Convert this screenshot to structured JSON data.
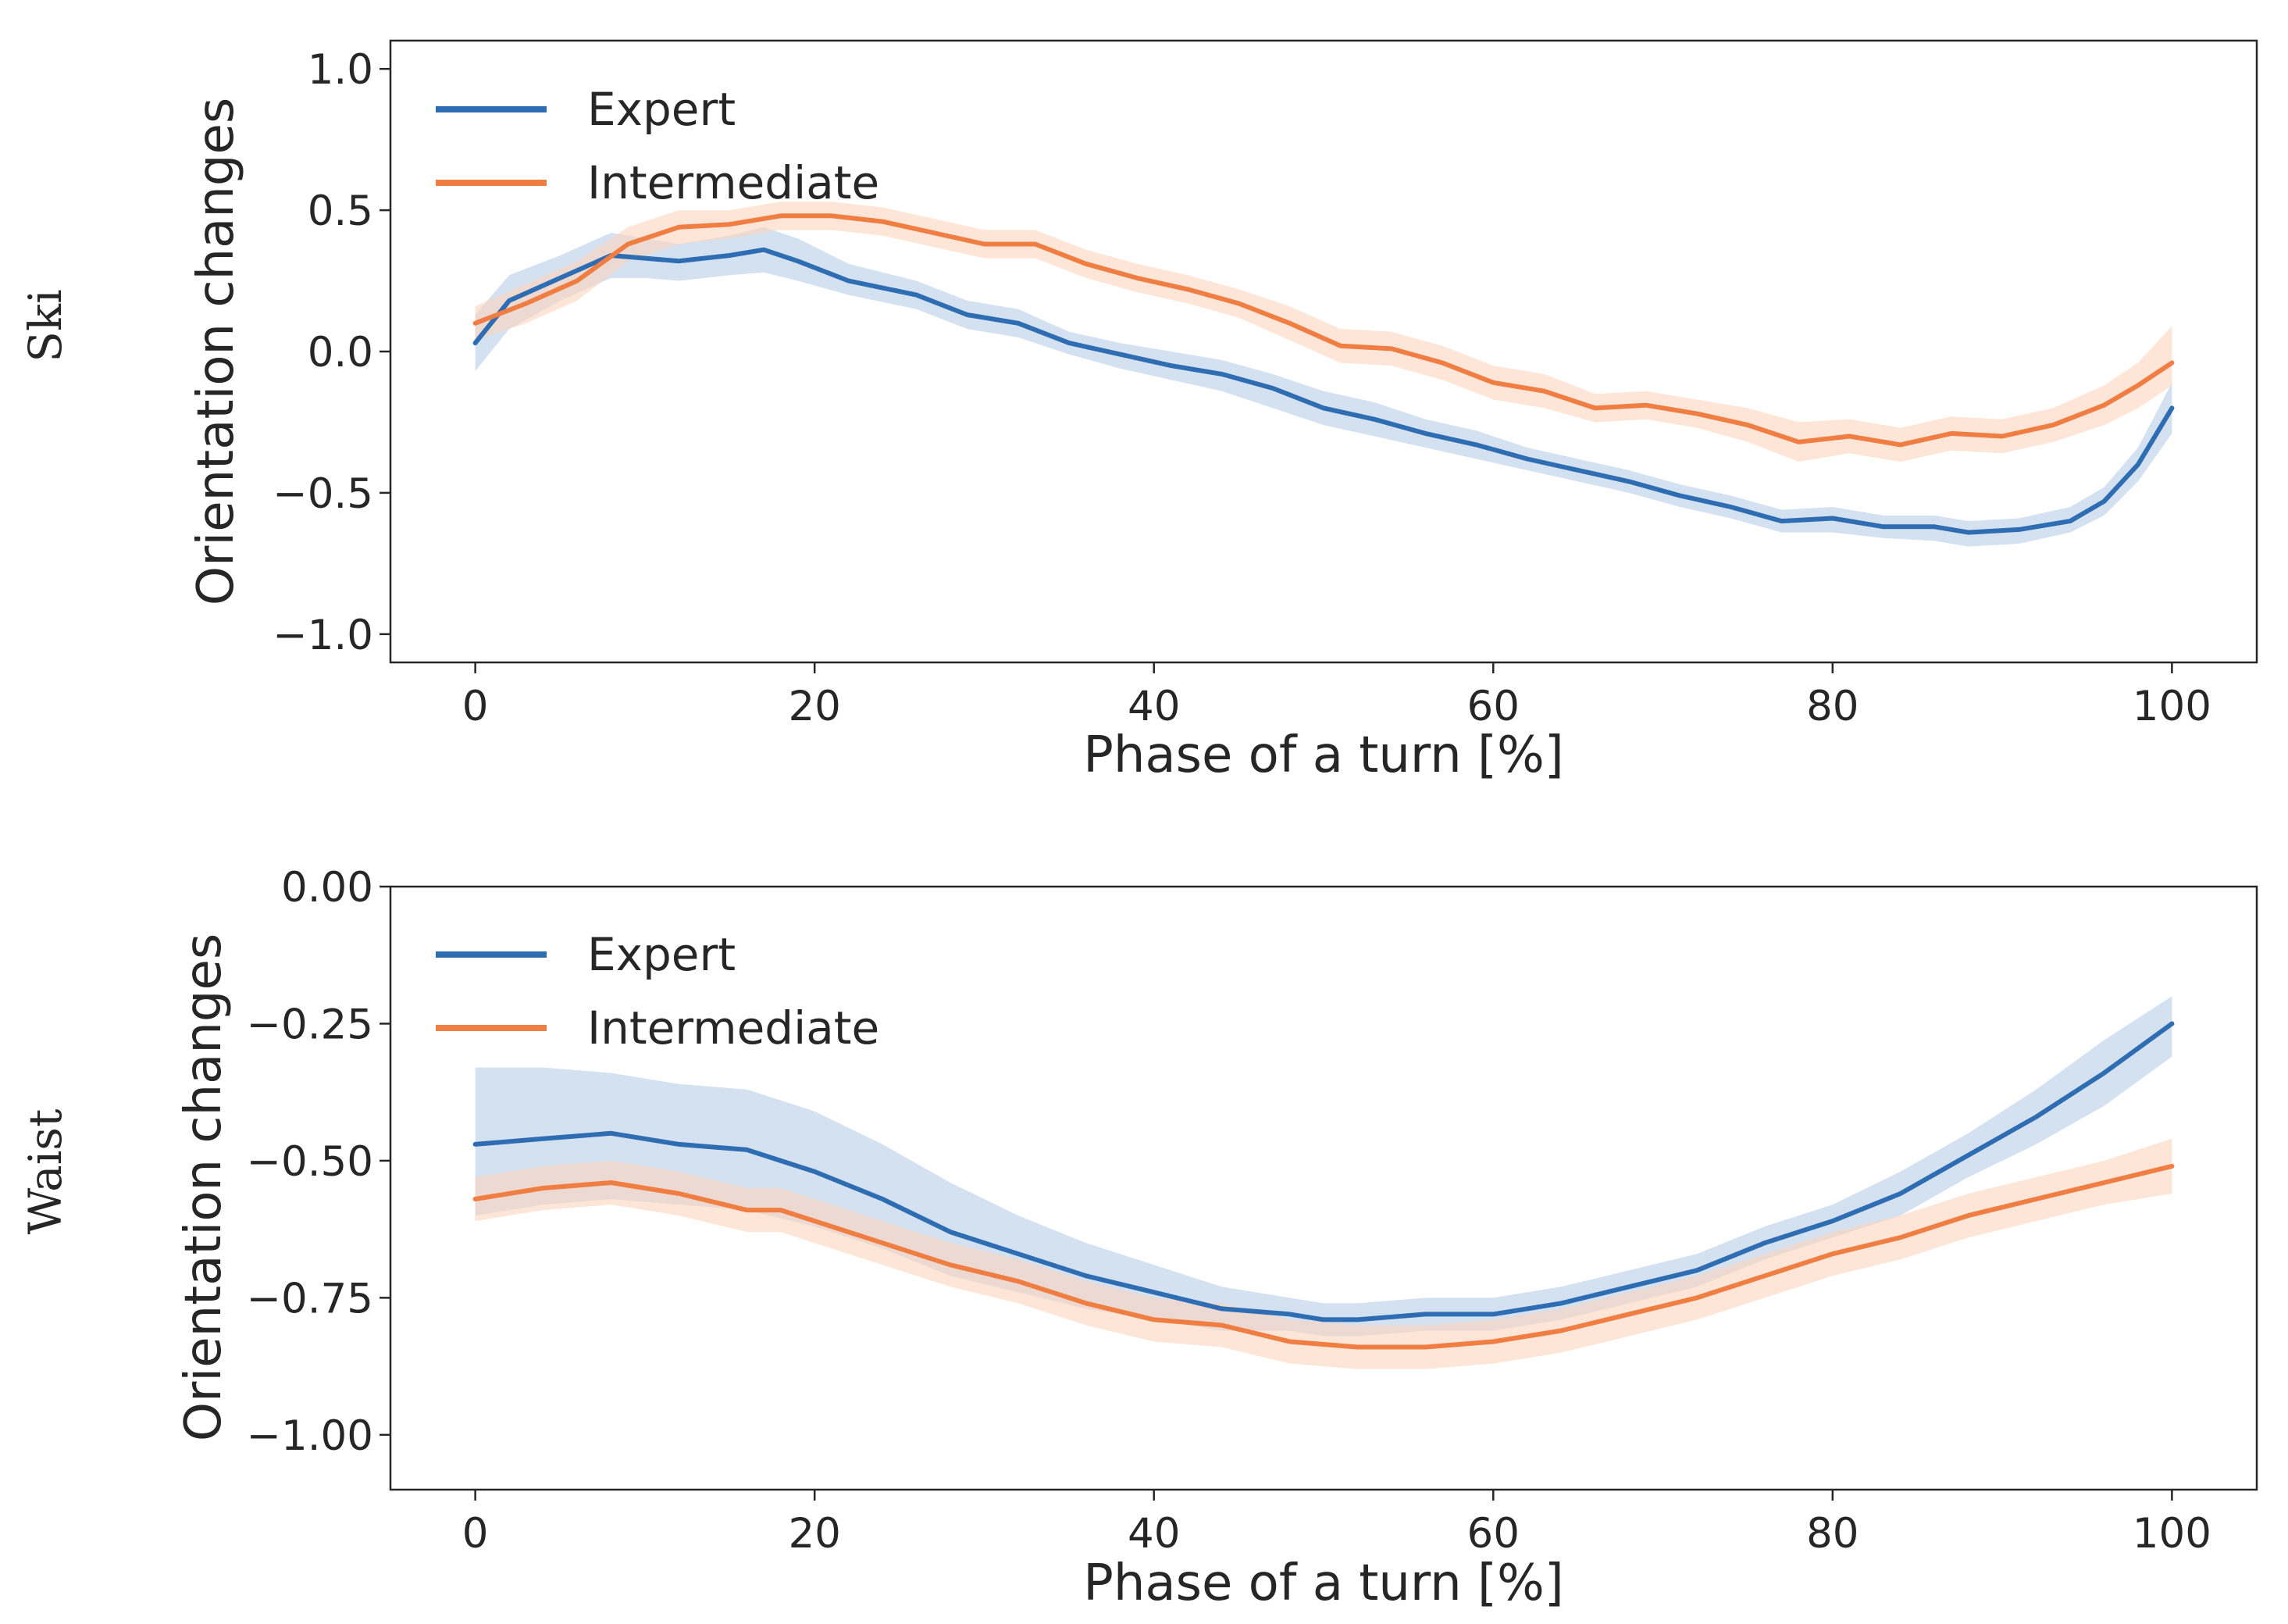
{
  "chart_data": [
    {
      "type": "line",
      "row_label": "Ski",
      "xlabel": "Phase of a turn [%]",
      "ylabel": "Orientation changes",
      "xlim": [
        -5,
        105
      ],
      "ylim": [
        -1.1,
        1.1
      ],
      "xticks": [
        0,
        20,
        40,
        60,
        80,
        100
      ],
      "xtick_labels": [
        "0",
        "20",
        "40",
        "60",
        "80",
        "100"
      ],
      "yticks": [
        1.0,
        0.5,
        0.0,
        -0.5,
        -1.0
      ],
      "ytick_labels": [
        "1.0",
        "0.5",
        "0.0",
        "−0.5",
        "−1.0"
      ],
      "legend": {
        "placement": "top-left",
        "entries": [
          "Expert",
          "Intermediate"
        ]
      },
      "series": [
        {
          "name": "Expert",
          "color": "#2f6db3",
          "band_color": "#b8cde6",
          "x": [
            0,
            2,
            5,
            8,
            10,
            12,
            15,
            17,
            19,
            22,
            26,
            29,
            32,
            35,
            38,
            41,
            44,
            47,
            50,
            53,
            56,
            59,
            62,
            65,
            68,
            71,
            74,
            77,
            80,
            83,
            86,
            88,
            91,
            94,
            96,
            98,
            100
          ],
          "mean": [
            0.03,
            0.18,
            0.26,
            0.34,
            0.33,
            0.32,
            0.34,
            0.36,
            0.32,
            0.25,
            0.2,
            0.13,
            0.1,
            0.03,
            -0.01,
            -0.05,
            -0.08,
            -0.13,
            -0.2,
            -0.24,
            -0.29,
            -0.33,
            -0.38,
            -0.42,
            -0.46,
            -0.51,
            -0.55,
            -0.6,
            -0.59,
            -0.62,
            -0.62,
            -0.64,
            -0.63,
            -0.6,
            -0.53,
            -0.4,
            -0.2
          ],
          "lower": [
            -0.07,
            0.08,
            0.18,
            0.26,
            0.26,
            0.25,
            0.27,
            0.28,
            0.25,
            0.2,
            0.15,
            0.08,
            0.05,
            -0.01,
            -0.06,
            -0.1,
            -0.14,
            -0.2,
            -0.26,
            -0.3,
            -0.34,
            -0.38,
            -0.42,
            -0.46,
            -0.5,
            -0.55,
            -0.59,
            -0.64,
            -0.64,
            -0.66,
            -0.67,
            -0.69,
            -0.68,
            -0.64,
            -0.58,
            -0.46,
            -0.29
          ],
          "upper": [
            0.13,
            0.27,
            0.34,
            0.42,
            0.4,
            0.38,
            0.41,
            0.44,
            0.4,
            0.31,
            0.25,
            0.18,
            0.15,
            0.07,
            0.03,
            0.0,
            -0.03,
            -0.08,
            -0.14,
            -0.18,
            -0.24,
            -0.28,
            -0.34,
            -0.38,
            -0.42,
            -0.47,
            -0.51,
            -0.56,
            -0.55,
            -0.58,
            -0.58,
            -0.6,
            -0.59,
            -0.55,
            -0.48,
            -0.34,
            -0.11
          ]
        },
        {
          "name": "Intermediate",
          "color": "#f07e43",
          "band_color": "#fcd3bd",
          "x": [
            0,
            3,
            6,
            9,
            12,
            15,
            18,
            21,
            24,
            27,
            30,
            33,
            36,
            39,
            42,
            45,
            48,
            51,
            54,
            57,
            60,
            63,
            66,
            69,
            72,
            75,
            78,
            81,
            84,
            87,
            90,
            93,
            96,
            98,
            100
          ],
          "mean": [
            0.1,
            0.17,
            0.25,
            0.38,
            0.44,
            0.45,
            0.48,
            0.48,
            0.46,
            0.42,
            0.38,
            0.38,
            0.31,
            0.26,
            0.22,
            0.17,
            0.1,
            0.02,
            0.01,
            -0.04,
            -0.11,
            -0.14,
            -0.2,
            -0.19,
            -0.22,
            -0.26,
            -0.32,
            -0.3,
            -0.33,
            -0.29,
            -0.3,
            -0.26,
            -0.19,
            -0.12,
            -0.04
          ],
          "lower": [
            0.04,
            0.1,
            0.18,
            0.32,
            0.38,
            0.4,
            0.43,
            0.43,
            0.41,
            0.37,
            0.33,
            0.33,
            0.26,
            0.21,
            0.17,
            0.12,
            0.04,
            -0.04,
            -0.05,
            -0.1,
            -0.17,
            -0.2,
            -0.25,
            -0.24,
            -0.27,
            -0.32,
            -0.39,
            -0.36,
            -0.39,
            -0.35,
            -0.36,
            -0.32,
            -0.26,
            -0.2,
            -0.12
          ],
          "upper": [
            0.16,
            0.24,
            0.32,
            0.44,
            0.5,
            0.5,
            0.53,
            0.53,
            0.51,
            0.47,
            0.43,
            0.43,
            0.36,
            0.31,
            0.27,
            0.22,
            0.16,
            0.08,
            0.07,
            0.02,
            -0.05,
            -0.08,
            -0.15,
            -0.14,
            -0.17,
            -0.2,
            -0.25,
            -0.24,
            -0.27,
            -0.23,
            -0.24,
            -0.2,
            -0.12,
            -0.04,
            0.09
          ]
        }
      ]
    },
    {
      "type": "line",
      "row_label": "Waist",
      "xlabel": "Phase of a turn [%]",
      "ylabel": "Orientation changes",
      "xlim": [
        -5,
        105
      ],
      "ylim": [
        -1.1,
        0.0
      ],
      "xticks": [
        0,
        20,
        40,
        60,
        80,
        100
      ],
      "xtick_labels": [
        "0",
        "20",
        "40",
        "60",
        "80",
        "100"
      ],
      "yticks": [
        0.0,
        -0.25,
        -0.5,
        -0.75,
        -1.0
      ],
      "ytick_labels": [
        "0.00",
        "−0.25",
        "−0.50",
        "−0.75",
        "−1.00"
      ],
      "legend": {
        "placement": "top-left",
        "entries": [
          "Expert",
          "Intermediate"
        ]
      },
      "series": [
        {
          "name": "Expert",
          "color": "#2f6db3",
          "band_color": "#b8cde6",
          "x": [
            0,
            4,
            8,
            12,
            16,
            20,
            24,
            28,
            32,
            36,
            40,
            44,
            48,
            50,
            52,
            56,
            60,
            64,
            68,
            72,
            76,
            80,
            84,
            88,
            92,
            96,
            100
          ],
          "mean": [
            -0.47,
            -0.46,
            -0.45,
            -0.47,
            -0.48,
            -0.52,
            -0.57,
            -0.63,
            -0.67,
            -0.71,
            -0.74,
            -0.77,
            -0.78,
            -0.79,
            -0.79,
            -0.78,
            -0.78,
            -0.76,
            -0.73,
            -0.7,
            -0.65,
            -0.61,
            -0.56,
            -0.49,
            -0.42,
            -0.34,
            -0.25
          ],
          "lower": [
            -0.6,
            -0.58,
            -0.57,
            -0.58,
            -0.59,
            -0.62,
            -0.66,
            -0.71,
            -0.74,
            -0.77,
            -0.79,
            -0.81,
            -0.81,
            -0.82,
            -0.82,
            -0.81,
            -0.81,
            -0.79,
            -0.76,
            -0.73,
            -0.68,
            -0.64,
            -0.6,
            -0.53,
            -0.47,
            -0.4,
            -0.31
          ],
          "upper": [
            -0.33,
            -0.33,
            -0.34,
            -0.36,
            -0.37,
            -0.41,
            -0.47,
            -0.54,
            -0.6,
            -0.65,
            -0.69,
            -0.73,
            -0.75,
            -0.76,
            -0.76,
            -0.75,
            -0.75,
            -0.73,
            -0.7,
            -0.67,
            -0.62,
            -0.58,
            -0.52,
            -0.45,
            -0.37,
            -0.28,
            -0.2
          ]
        },
        {
          "name": "Intermediate",
          "color": "#f07e43",
          "band_color": "#fcd3bd",
          "x": [
            0,
            4,
            8,
            12,
            16,
            18,
            20,
            24,
            28,
            32,
            36,
            40,
            44,
            48,
            52,
            56,
            60,
            64,
            68,
            72,
            76,
            80,
            84,
            88,
            92,
            96,
            100
          ],
          "mean": [
            -0.57,
            -0.55,
            -0.54,
            -0.56,
            -0.59,
            -0.59,
            -0.61,
            -0.65,
            -0.69,
            -0.72,
            -0.76,
            -0.79,
            -0.8,
            -0.83,
            -0.84,
            -0.84,
            -0.83,
            -0.81,
            -0.78,
            -0.75,
            -0.71,
            -0.67,
            -0.64,
            -0.6,
            -0.57,
            -0.54,
            -0.51
          ],
          "lower": [
            -0.61,
            -0.59,
            -0.58,
            -0.6,
            -0.63,
            -0.63,
            -0.65,
            -0.69,
            -0.73,
            -0.76,
            -0.8,
            -0.83,
            -0.84,
            -0.87,
            -0.88,
            -0.88,
            -0.87,
            -0.85,
            -0.82,
            -0.79,
            -0.75,
            -0.71,
            -0.68,
            -0.64,
            -0.61,
            -0.58,
            -0.56
          ],
          "upper": [
            -0.53,
            -0.51,
            -0.5,
            -0.52,
            -0.55,
            -0.55,
            -0.57,
            -0.61,
            -0.65,
            -0.68,
            -0.72,
            -0.75,
            -0.76,
            -0.79,
            -0.8,
            -0.8,
            -0.79,
            -0.77,
            -0.74,
            -0.71,
            -0.67,
            -0.63,
            -0.6,
            -0.56,
            -0.53,
            -0.5,
            -0.46
          ]
        }
      ]
    }
  ]
}
